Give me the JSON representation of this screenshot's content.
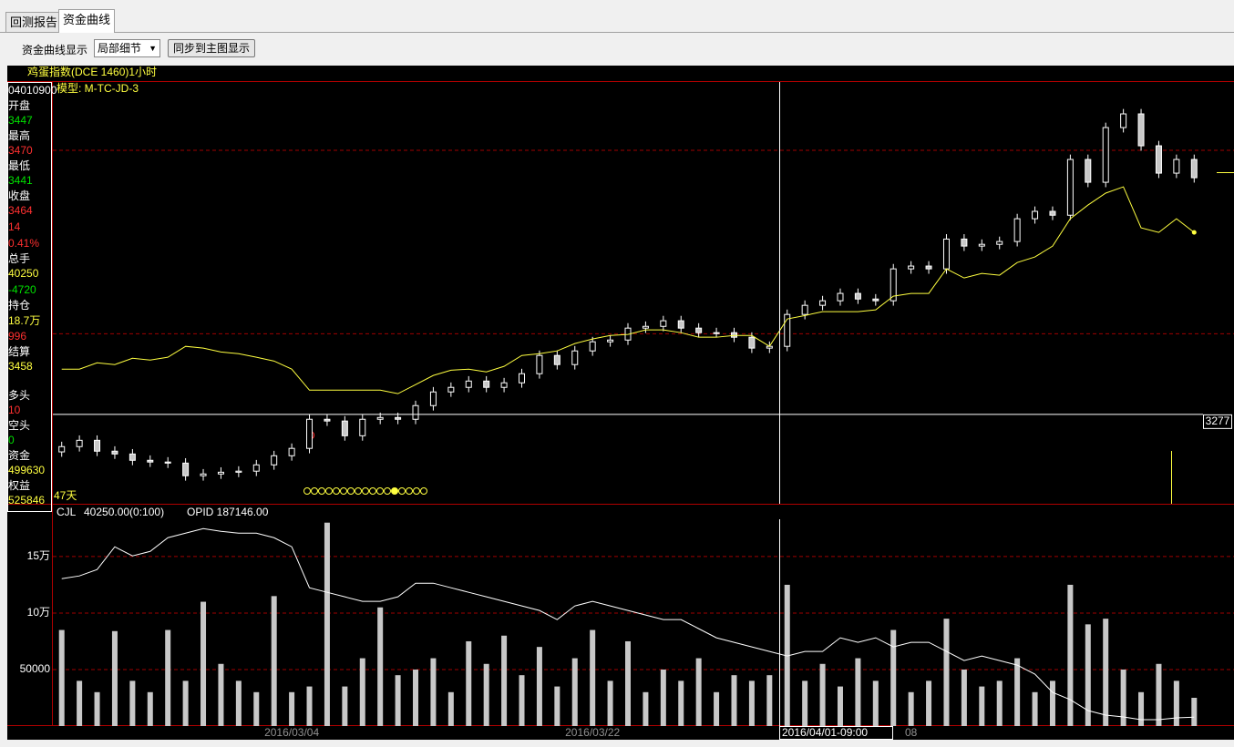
{
  "tabs": [
    "回测报告",
    "资金曲线"
  ],
  "toolbar": {
    "label": "资金曲线显示",
    "select": "局部细节",
    "button": "同步到主图显示"
  },
  "info_panel": [
    {
      "text": "04010900",
      "color": "#ffffff"
    },
    {
      "text": "开盘",
      "color": "#ffffff"
    },
    {
      "text": 3447,
      "color": "#00e000"
    },
    {
      "text": "最高",
      "color": "#ffffff"
    },
    {
      "text": 3470,
      "color": "#ff3030"
    },
    {
      "text": "最低",
      "color": "#ffffff"
    },
    {
      "text": 3441,
      "color": "#00e000"
    },
    {
      "text": "收盘",
      "color": "#ffffff"
    },
    {
      "text": 3464,
      "color": "#ff3030"
    },
    {
      "text": 14,
      "color": "#ff3030"
    },
    {
      "text": "0.41%",
      "color": "#ff3030"
    },
    {
      "text": "总手",
      "color": "#ffffff"
    },
    {
      "text": 40250,
      "color": "#ffff40"
    },
    {
      "text": -4720,
      "color": "#00e000"
    },
    {
      "text": "持仓",
      "color": "#ffffff"
    },
    {
      "text": "18.7万",
      "color": "#ffff40"
    },
    {
      "text": 996,
      "color": "#ff3030"
    },
    {
      "text": "结算",
      "color": "#ffffff"
    },
    {
      "text": 3458,
      "color": "#ffff40"
    },
    {
      "text": "多头",
      "color": "#ffffff"
    },
    {
      "text": 10,
      "color": "#ff3030"
    },
    {
      "text": "空头",
      "color": "#ffffff"
    },
    {
      "text": 0,
      "color": "#00e000"
    },
    {
      "text": "资金",
      "color": "#ffffff"
    },
    {
      "text": 499630,
      "color": "#ffff40"
    },
    {
      "text": "权益",
      "color": "#ffffff"
    },
    {
      "text": 525846,
      "color": "#ffff40"
    }
  ],
  "chart_data": [
    {
      "type": "candlestick",
      "title": "鸡蛋指数(DCE 1460)1小时",
      "subtitle": "模型: M-TC-JD-3",
      "annotation": "47天",
      "opens": [
        3170,
        3185,
        3203,
        3172,
        3164,
        3146,
        3141,
        3138,
        3102,
        3107,
        3112,
        3115,
        3133,
        3159,
        3180,
        3263,
        3258,
        3216,
        3263,
        3268,
        3263,
        3302,
        3341,
        3354,
        3372,
        3354,
        3367,
        3393,
        3445,
        3419,
        3458,
        3484,
        3489,
        3523,
        3528,
        3544,
        3523,
        3510,
        3510,
        3497,
        3466,
        3471,
        3562,
        3588,
        3601,
        3622,
        3606,
        3601,
        3692,
        3700,
        3692,
        3777,
        3757,
        3762,
        3770,
        3835,
        3856,
        3845,
        4004,
        3939,
        4095,
        4134,
        4043,
        3965,
        4004
      ],
      "highs": [
        3199,
        3217,
        3217,
        3186,
        3178,
        3160,
        3155,
        3152,
        3121,
        3126,
        3129,
        3147,
        3173,
        3194,
        3277,
        3277,
        3272,
        3277,
        3282,
        3282,
        3316,
        3355,
        3368,
        3386,
        3386,
        3381,
        3407,
        3459,
        3459,
        3472,
        3498,
        3503,
        3537,
        3542,
        3558,
        3558,
        3537,
        3524,
        3524,
        3511,
        3485,
        3576,
        3602,
        3615,
        3636,
        3636,
        3620,
        3706,
        3714,
        3714,
        3791,
        3791,
        3776,
        3784,
        3849,
        3870,
        3870,
        4018,
        4018,
        4109,
        4148,
        4148,
        4057,
        4018,
        4018
      ],
      "lows": [
        3156,
        3171,
        3158,
        3150,
        3132,
        3127,
        3124,
        3088,
        3088,
        3093,
        3098,
        3101,
        3119,
        3145,
        3166,
        3244,
        3202,
        3202,
        3249,
        3249,
        3249,
        3288,
        3327,
        3340,
        3340,
        3340,
        3353,
        3379,
        3405,
        3405,
        3444,
        3470,
        3475,
        3509,
        3514,
        3509,
        3496,
        3496,
        3483,
        3452,
        3452,
        3457,
        3548,
        3574,
        3587,
        3592,
        3587,
        3587,
        3678,
        3678,
        3678,
        3743,
        3743,
        3748,
        3756,
        3821,
        3831,
        3831,
        3925,
        3925,
        4081,
        4029,
        3951,
        3951,
        3938
      ],
      "closes": [
        3185,
        3203,
        3172,
        3164,
        3146,
        3141,
        3138,
        3102,
        3107,
        3112,
        3115,
        3133,
        3159,
        3180,
        3263,
        3258,
        3216,
        3263,
        3268,
        3263,
        3302,
        3341,
        3354,
        3372,
        3354,
        3367,
        3393,
        3445,
        3419,
        3458,
        3484,
        3489,
        3523,
        3528,
        3544,
        3523,
        3510,
        3510,
        3497,
        3466,
        3471,
        3562,
        3588,
        3601,
        3622,
        3606,
        3601,
        3692,
        3700,
        3692,
        3777,
        3757,
        3762,
        3770,
        3835,
        3856,
        3845,
        4004,
        3939,
        4095,
        4134,
        4043,
        3965,
        4004,
        3952
      ],
      "line": {
        "color": "#ffff40",
        "values": [
          3406,
          3406,
          3424,
          3419,
          3437,
          3432,
          3440,
          3471,
          3466,
          3455,
          3450,
          3440,
          3429,
          3406,
          3346,
          3346,
          3346,
          3346,
          3346,
          3336,
          3362,
          3388,
          3403,
          3406,
          3398,
          3414,
          3445,
          3450,
          3458,
          3479,
          3492,
          3502,
          3505,
          3518,
          3518,
          3510,
          3497,
          3497,
          3502,
          3502,
          3471,
          3549,
          3559,
          3570,
          3570,
          3570,
          3575,
          3614,
          3622,
          3622,
          3692,
          3666,
          3679,
          3674,
          3710,
          3726,
          3757,
          3835,
          3874,
          3908,
          3926,
          3809,
          3796,
          3835,
          3796
        ]
      },
      "ylim": [
        3022,
        4225
      ],
      "gridlines": [
        3507,
        4030
      ],
      "crosshair": {
        "value": 3277,
        "label": "2016/04/01-09:00"
      }
    },
    {
      "type": "bar",
      "legend": [
        "CJL",
        "40250.00(0:100)",
        "OPID 187146.00"
      ],
      "categories": [
        null,
        null,
        null,
        null,
        null,
        null,
        null,
        null,
        null,
        null,
        null,
        null,
        null,
        "2016/03/04",
        null,
        null,
        null,
        null,
        null,
        null,
        null,
        null,
        null,
        null,
        null,
        null,
        null,
        null,
        null,
        null,
        "2016/03/22",
        null,
        null,
        null,
        null,
        null,
        null,
        null,
        null,
        null,
        null,
        null,
        null,
        null,
        null,
        null,
        null,
        null,
        "08",
        null,
        null,
        null,
        null,
        null,
        null,
        null,
        null,
        null,
        null,
        null,
        null,
        null,
        null,
        null,
        null
      ],
      "values": [
        85000,
        40000,
        30000,
        84000,
        40000,
        30000,
        85000,
        40000,
        110000,
        55000,
        40000,
        30000,
        115000,
        30000,
        35000,
        180000,
        35000,
        60000,
        105000,
        45000,
        50000,
        60000,
        30000,
        75000,
        55000,
        80000,
        45000,
        70000,
        35000,
        60000,
        85000,
        40000,
        75000,
        30000,
        50000,
        40000,
        60000,
        30000,
        45000,
        40000,
        45000,
        125000,
        40000,
        55000,
        35000,
        60000,
        40000,
        85000,
        30000,
        40000,
        95000,
        50000,
        35000,
        40000,
        60000,
        30000,
        40000,
        125000,
        90000,
        95000,
        50000,
        30000,
        55000,
        40000,
        25000
      ],
      "color": "#c8c8c8",
      "ylim": [
        0,
        183000
      ],
      "yticks": [
        50000,
        {
          "value": 100000,
          "label": "10万"
        },
        {
          "value": 150000,
          "label": "15万"
        }
      ],
      "grid": true,
      "line": {
        "color": "#ffffff",
        "axis": "y2",
        "values": [
          220640,
          221300,
          222840,
          228340,
          226140,
          227240,
          230540,
          231640,
          232740,
          232080,
          231640,
          231640,
          230540,
          228340,
          218440,
          217340,
          216240,
          215140,
          215140,
          216240,
          219540,
          219540,
          218440,
          217340,
          216240,
          215140,
          214040,
          212940,
          210740,
          214040,
          215140,
          214040,
          212940,
          211840,
          210740,
          210740,
          208540,
          206340,
          205240,
          204140,
          203040,
          201940,
          203040,
          203040,
          206340,
          205240,
          206340,
          204140,
          205240,
          205240,
          203040,
          200840,
          201940,
          200840,
          199740,
          197540,
          193140,
          191380,
          188740,
          187640,
          187200,
          186540,
          186540,
          186980,
          187146
        ]
      },
      "y2lim": [
        185000,
        235000
      ]
    }
  ]
}
